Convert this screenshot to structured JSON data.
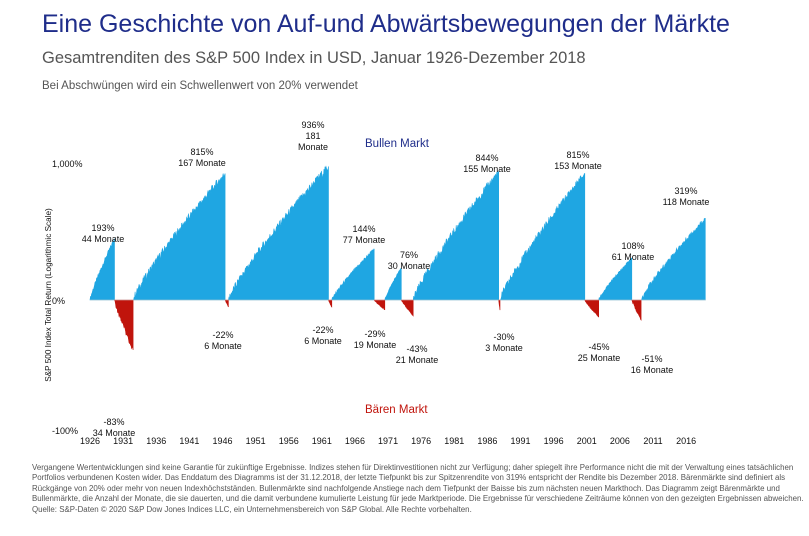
{
  "title": "Eine Geschichte von Auf-und Abwärtsbewegungen der Märkte",
  "subtitle": "Gesamtrenditen des S&P 500 Index in USD, Januar 1926-Dezember 2018",
  "note": "Bei Abschwüngen wird ein Schwellenwert von 20% verwendet",
  "footer": [
    "Vergangene Wertentwicklungen sind keine Garantie für zukünftige Ergebnisse. Indizes stehen für Direktinvestitionen nicht zur Verfügung; daher spiegelt ihre Performance nicht die mit der Verwaltung eines tatsächlichen",
    "Portfolios verbundenen Kosten wider. Das Enddatum des Diagramms ist der 31.12.2018, der letzte Tiefpunkt bis zur Spitzenrendite von 319% entspricht der Rendite bis Dezember 2018. Bärenmärkte sind definiert als",
    "Rückgänge von 20% oder mehr von neuen Indexhöchstständen. Bullenmärkte sind nachfolgende Anstiege nach dem Tiefpunkt der Baisse bis zum nächsten neuen Markthoch. Das Diagramm zeigt Bärenmärkte und",
    "Bullenmärkte, die Anzahl der Monate, die sie dauerten, und die damit verbundene kumulierte Leistung für jede Marktperiode. Die Ergebnisse für verschiedene Zeiträume können von den gezeigten Ergebnissen abweichen.",
    "Quelle: S&P-Daten © 2020 S&P Dow Jones Indices LLC, ein Unternehmensbereich von S&P Global. Alle Rechte vorbehalten."
  ],
  "chart_data": {
    "type": "area",
    "ylabel": "S&P 500 Index Total Return (Logarithmic Scale)",
    "y_scale": "log",
    "y_ticks": [
      "1,000%",
      "0%",
      "-100%"
    ],
    "x_ticks": [
      "1926",
      "1931",
      "1936",
      "1941",
      "1946",
      "1951",
      "1956",
      "1961",
      "1966",
      "1971",
      "1976",
      "1981",
      "1986",
      "1991",
      "1996",
      "2001",
      "2006",
      "2011",
      "2016"
    ],
    "xlim": [
      1926,
      2019
    ],
    "legend": [
      {
        "name": "Bullen Markt",
        "color": "#1fa6e2"
      },
      {
        "name": "Bären Markt",
        "color": "#c0140c"
      }
    ],
    "bull_markets": [
      {
        "start": 1926.0,
        "end": 1929.7,
        "return_pct": 193,
        "months": 44,
        "labels": [
          "193%",
          "44 Monate"
        ]
      },
      {
        "start": 1932.5,
        "end": 1946.4,
        "return_pct": 815,
        "months": 167,
        "labels": [
          "815%",
          "167 Monate"
        ]
      },
      {
        "start": 1946.9,
        "end": 1962.0,
        "return_pct": 936,
        "months": 181,
        "labels": [
          "936%",
          "181",
          "Monate"
        ]
      },
      {
        "start": 1962.5,
        "end": 1968.9,
        "return_pct": 144,
        "months": 77,
        "labels": [
          "144%",
          "77 Monate"
        ]
      },
      {
        "start": 1970.5,
        "end": 1973.0,
        "return_pct": 76,
        "months": 30,
        "labels": [
          "76%",
          "30 Monate"
        ]
      },
      {
        "start": 1974.8,
        "end": 1987.7,
        "return_pct": 844,
        "months": 155,
        "labels": [
          "844%",
          "155 Monate"
        ]
      },
      {
        "start": 1987.9,
        "end": 2000.7,
        "return_pct": 815,
        "months": 153,
        "labels": [
          "815%",
          "153 Monate"
        ]
      },
      {
        "start": 2002.8,
        "end": 2007.8,
        "return_pct": 108,
        "months": 61,
        "labels": [
          "108%",
          "61 Monate"
        ]
      },
      {
        "start": 2009.2,
        "end": 2018.9,
        "return_pct": 319,
        "months": 118,
        "labels": [
          "319%",
          "118 Monate"
        ]
      }
    ],
    "bear_markets": [
      {
        "start": 1929.7,
        "end": 1932.5,
        "return_pct": -83,
        "months": 34,
        "labels": [
          "-83%",
          "34 Monate"
        ]
      },
      {
        "start": 1946.4,
        "end": 1946.9,
        "return_pct": -22,
        "months": 6,
        "labels": [
          "-22%",
          "6 Monate"
        ]
      },
      {
        "start": 1962.0,
        "end": 1962.5,
        "return_pct": -22,
        "months": 6,
        "labels": [
          "-22%",
          "6 Monate"
        ]
      },
      {
        "start": 1968.9,
        "end": 1970.5,
        "return_pct": -29,
        "months": 19,
        "labels": [
          "-29%",
          "19 Monate"
        ]
      },
      {
        "start": 1973.0,
        "end": 1974.8,
        "return_pct": -43,
        "months": 21,
        "labels": [
          "-43%",
          "21 Monate"
        ]
      },
      {
        "start": 1987.7,
        "end": 1987.9,
        "return_pct": -30,
        "months": 3,
        "labels": [
          "-30%",
          "3 Monate"
        ]
      },
      {
        "start": 2000.7,
        "end": 2002.8,
        "return_pct": -45,
        "months": 25,
        "labels": [
          "-45%",
          "25 Monate"
        ]
      },
      {
        "start": 2007.8,
        "end": 2009.2,
        "return_pct": -51,
        "months": 16,
        "labels": [
          "-51%",
          "16 Monate"
        ]
      }
    ]
  }
}
